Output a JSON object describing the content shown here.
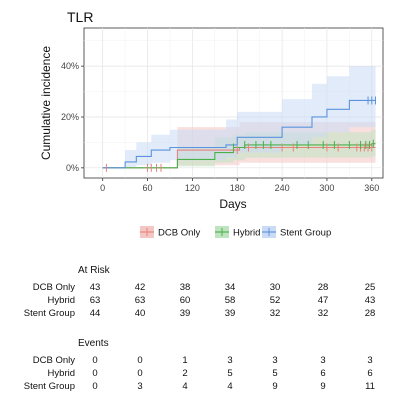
{
  "chart_data": {
    "type": "line",
    "subtype": "step (cumulative incidence with confidence bands)",
    "title": "TLR",
    "xlabel": "Days",
    "ylabel": "Cumulative incidence",
    "xlim": [
      -25,
      375
    ],
    "ylim": [
      -0.04,
      0.55
    ],
    "x_ticks": [
      0,
      60,
      120,
      180,
      240,
      300,
      360
    ],
    "y_ticks": [
      0,
      0.2,
      0.4
    ],
    "y_tick_labels": [
      "0%",
      "20%",
      "40%"
    ],
    "grid": true,
    "legend_position": "bottom",
    "series": [
      {
        "name": "DCB Only",
        "color": "#e8827a",
        "band_color": "#f4c7c4",
        "steps": [
          [
            0,
            0
          ],
          [
            100,
            0.07
          ],
          [
            180,
            0.07
          ],
          [
            183,
            0.08
          ],
          [
            360,
            0.08
          ]
        ],
        "lower": [
          [
            0,
            0
          ],
          [
            100,
            0.01
          ],
          [
            180,
            0.01
          ],
          [
            183,
            0.02
          ],
          [
            360,
            0.02
          ]
        ],
        "upper": [
          [
            0,
            0
          ],
          [
            100,
            0.16
          ],
          [
            180,
            0.16
          ],
          [
            183,
            0.18
          ],
          [
            360,
            0.18
          ]
        ],
        "censor_x": [
          5,
          60,
          65,
          72,
          78,
          180,
          195,
          240,
          255,
          300,
          315,
          340,
          345,
          350,
          355,
          360
        ]
      },
      {
        "name": "Hybrid",
        "color": "#4bb04b",
        "band_color": "#bfe3bf",
        "steps": [
          [
            0,
            0
          ],
          [
            100,
            0.033
          ],
          [
            150,
            0.06
          ],
          [
            175,
            0.08
          ],
          [
            190,
            0.09
          ],
          [
            360,
            0.095
          ]
        ],
        "lower": [
          [
            0,
            0
          ],
          [
            100,
            0.005
          ],
          [
            150,
            0.02
          ],
          [
            175,
            0.03
          ],
          [
            190,
            0.04
          ],
          [
            360,
            0.045
          ]
        ],
        "upper": [
          [
            0,
            0
          ],
          [
            100,
            0.08
          ],
          [
            150,
            0.12
          ],
          [
            175,
            0.13
          ],
          [
            190,
            0.14
          ],
          [
            360,
            0.15
          ]
        ],
        "censor_x": [
          175,
          190,
          205,
          215,
          225,
          260,
          275,
          295,
          310,
          330,
          345,
          352,
          357,
          362
        ]
      },
      {
        "name": "Stent Group",
        "color": "#5a93db",
        "band_color": "#c9dbf6",
        "steps": [
          [
            0,
            0
          ],
          [
            30,
            0.023
          ],
          [
            45,
            0.045
          ],
          [
            65,
            0.07
          ],
          [
            90,
            0.08
          ],
          [
            165,
            0.09
          ],
          [
            180,
            0.12
          ],
          [
            240,
            0.16
          ],
          [
            280,
            0.2
          ],
          [
            300,
            0.23
          ],
          [
            330,
            0.265
          ],
          [
            360,
            0.265
          ]
        ],
        "lower": [
          [
            0,
            0
          ],
          [
            30,
            0.003
          ],
          [
            45,
            0.01
          ],
          [
            65,
            0.02
          ],
          [
            90,
            0.03
          ],
          [
            165,
            0.04
          ],
          [
            180,
            0.06
          ],
          [
            240,
            0.09
          ],
          [
            280,
            0.12
          ],
          [
            300,
            0.14
          ],
          [
            330,
            0.16
          ],
          [
            360,
            0.16
          ]
        ],
        "upper": [
          [
            0,
            0
          ],
          [
            30,
            0.07
          ],
          [
            45,
            0.1
          ],
          [
            65,
            0.13
          ],
          [
            90,
            0.15
          ],
          [
            165,
            0.19
          ],
          [
            180,
            0.22
          ],
          [
            240,
            0.27
          ],
          [
            280,
            0.33
          ],
          [
            300,
            0.36
          ],
          [
            330,
            0.4
          ],
          [
            360,
            0.4
          ]
        ],
        "censor_x": [
          355,
          360,
          365
        ]
      }
    ],
    "at_risk": {
      "title": "At Risk",
      "columns": [
        0,
        60,
        120,
        180,
        240,
        300,
        360
      ],
      "rows": [
        {
          "label": "DCB Only",
          "values": [
            43,
            42,
            38,
            34,
            30,
            28,
            25
          ]
        },
        {
          "label": "Hybrid",
          "values": [
            63,
            63,
            60,
            58,
            52,
            47,
            43
          ]
        },
        {
          "label": "Stent Group",
          "values": [
            44,
            40,
            39,
            39,
            32,
            32,
            28
          ]
        }
      ]
    },
    "events": {
      "title": "Events",
      "columns": [
        0,
        60,
        120,
        180,
        240,
        300,
        360
      ],
      "rows": [
        {
          "label": "DCB Only",
          "values": [
            0,
            0,
            1,
            3,
            3,
            3,
            3
          ]
        },
        {
          "label": "Hybrid",
          "values": [
            0,
            0,
            2,
            5,
            5,
            6,
            6
          ]
        },
        {
          "label": "Stent Group",
          "values": [
            0,
            3,
            4,
            4,
            9,
            9,
            11
          ]
        }
      ]
    }
  }
}
